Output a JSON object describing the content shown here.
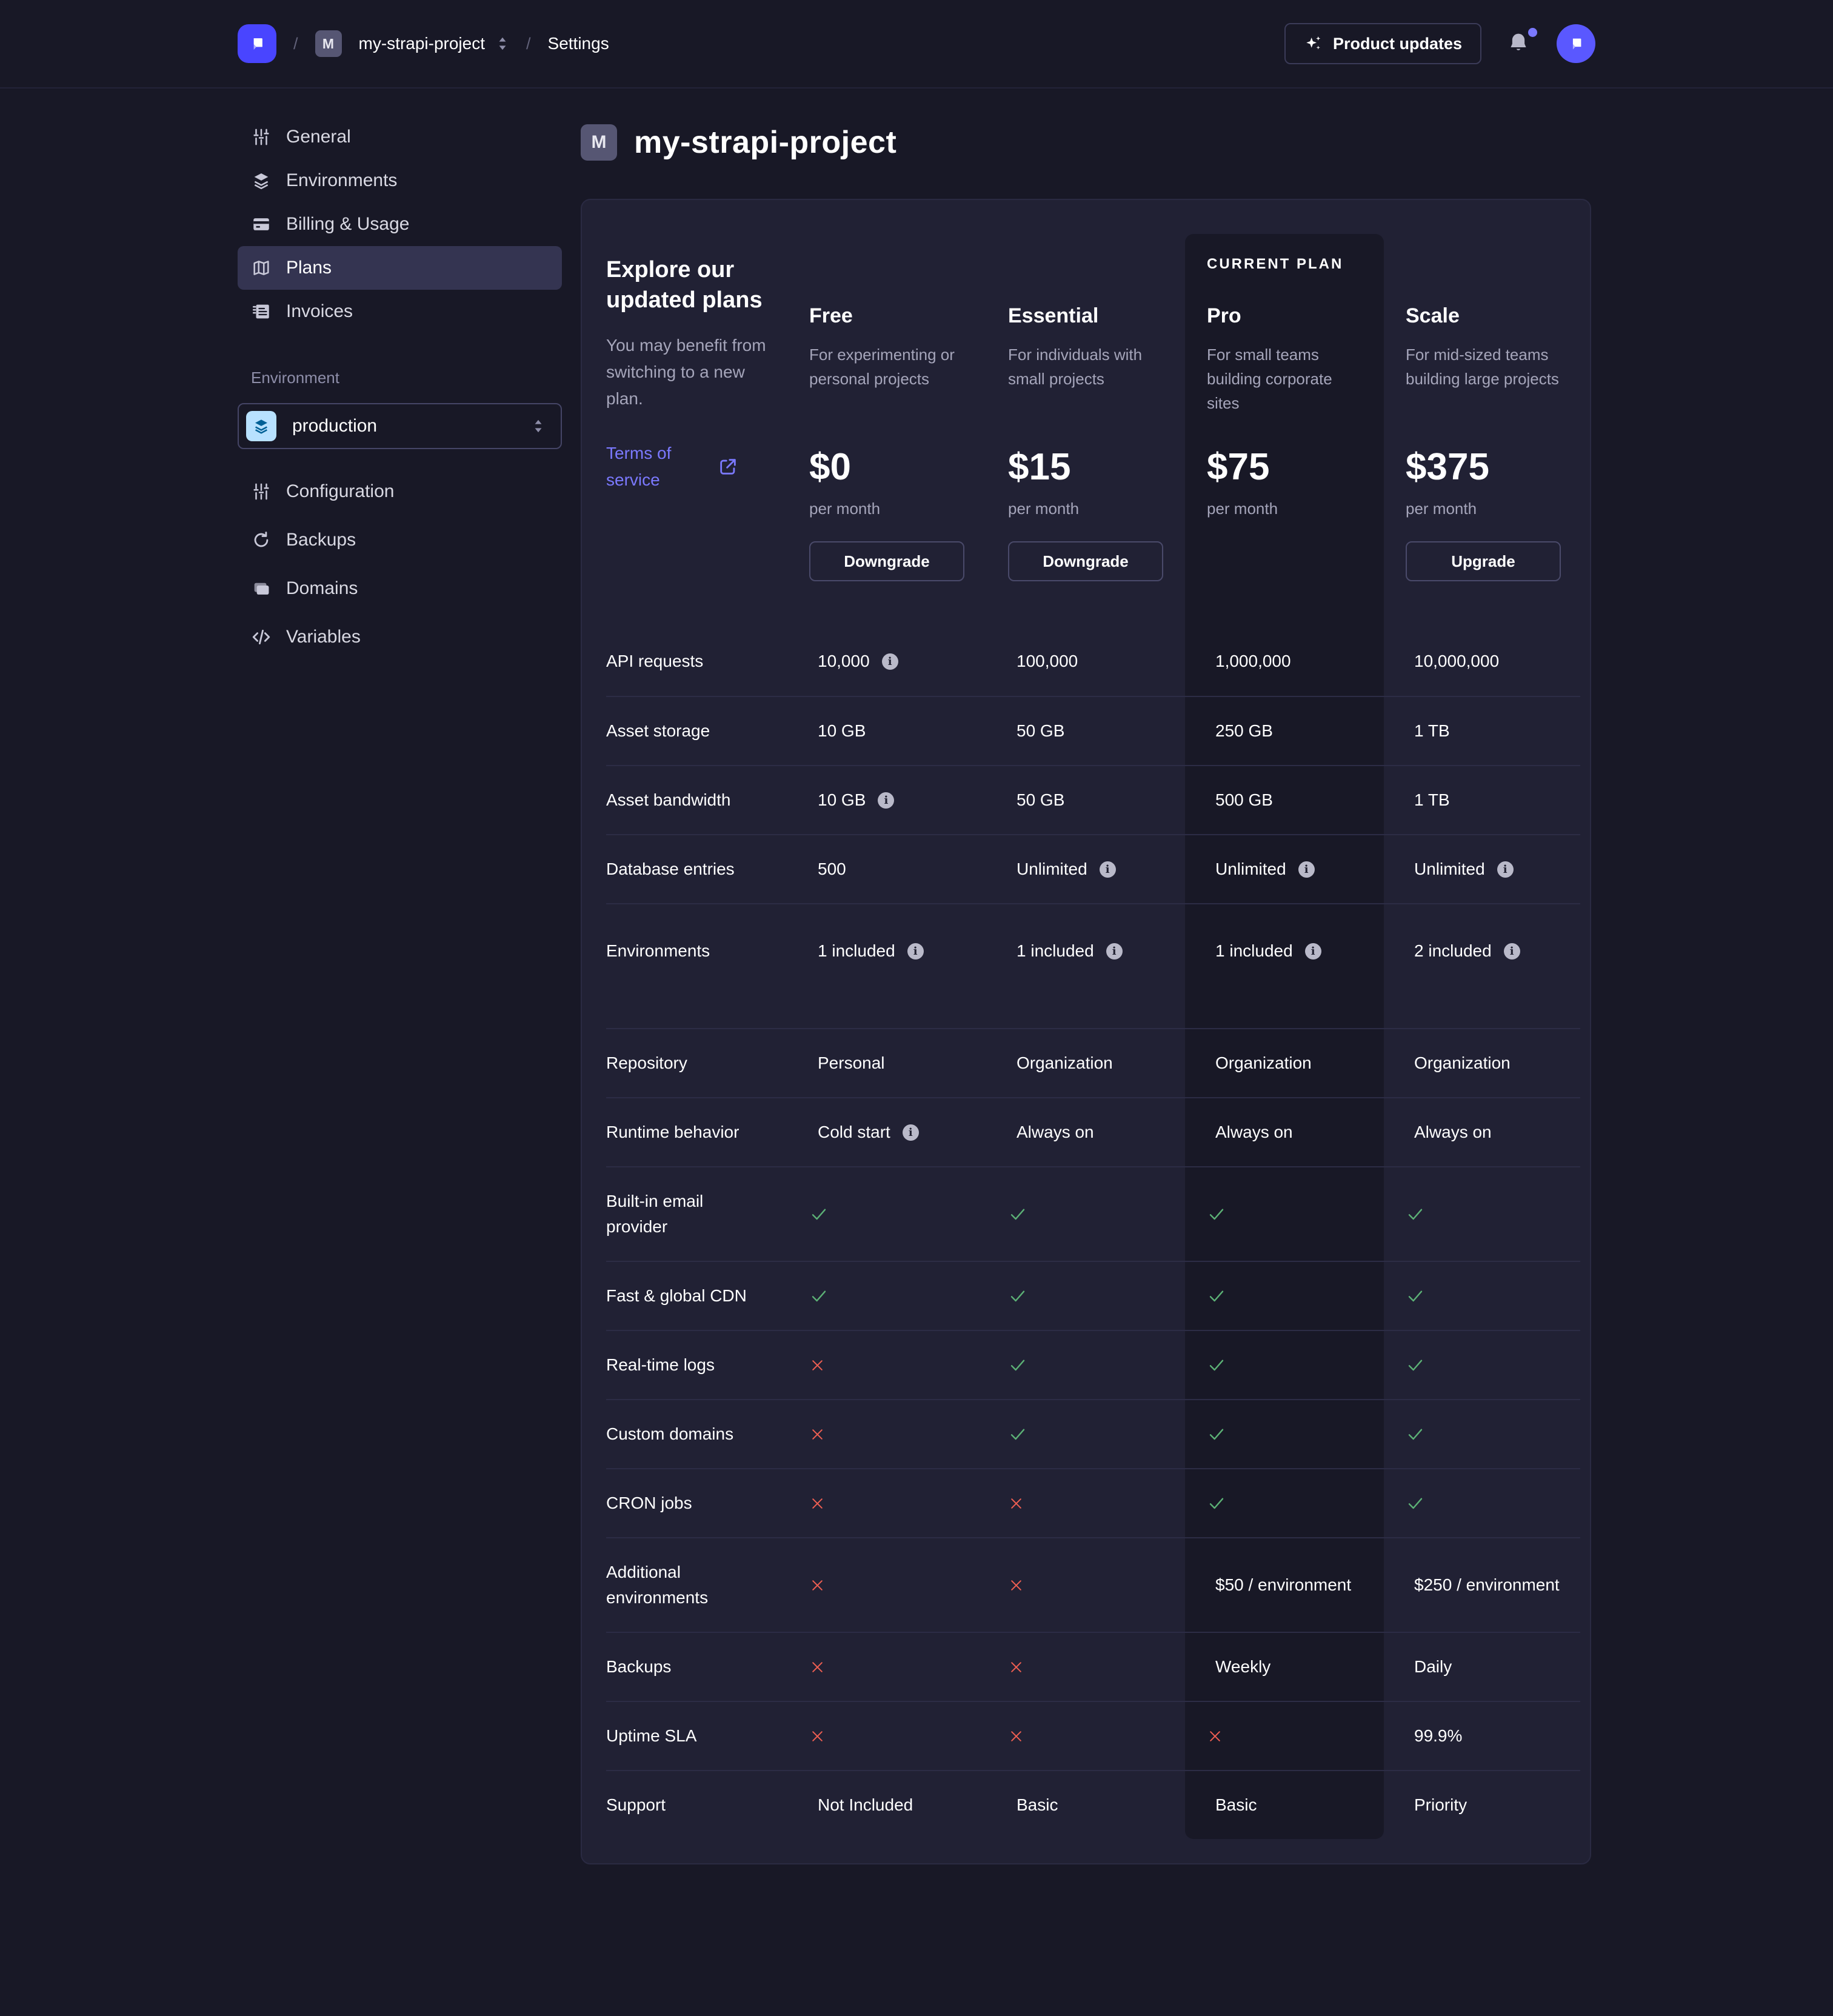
{
  "topbar": {
    "separator": "/",
    "project_badge": "M",
    "project_name": "my-strapi-project",
    "section": "Settings",
    "product_updates_label": "Product updates"
  },
  "icons": {
    "logo": "strapi-logo-icon",
    "project_switcher": "sort-updown-icon",
    "product_updates": "sparkles-icon",
    "notifications": "bell-icon",
    "avatar": "strapi-avatar-icon",
    "select_caret": "sort-updown-icon",
    "terms_external": "external-link-icon"
  },
  "page": {
    "title_badge": "M",
    "title": "my-strapi-project"
  },
  "sidebar": {
    "items": [
      {
        "icon": "sliders-icon",
        "label": "General",
        "selected": false
      },
      {
        "icon": "layers-icon",
        "label": "Environments",
        "selected": false
      },
      {
        "icon": "credit-card-icon",
        "label": "Billing & Usage",
        "selected": false
      },
      {
        "icon": "map-icon",
        "label": "Plans",
        "selected": true
      },
      {
        "icon": "invoice-icon",
        "label": "Invoices",
        "selected": false
      }
    ],
    "environment_label": "Environment",
    "environment_select": {
      "icon": "layers-blue-icon",
      "value": "production"
    },
    "environment_items": [
      {
        "icon": "sliders-icon",
        "label": "Configuration"
      },
      {
        "icon": "refresh-icon",
        "label": "Backups"
      },
      {
        "icon": "stack-icon",
        "label": "Domains"
      },
      {
        "icon": "code-icon",
        "label": "Variables"
      }
    ]
  },
  "plans_header": {
    "title": "Explore our updated plans",
    "subtitle": "You may benefit from switching to a new plan.",
    "terms_link": "Terms of service",
    "columns": [
      {
        "name": "Free",
        "desc": "For experimenting or personal projects",
        "price": "$0",
        "per": "per month",
        "button": "Downgrade",
        "current": false
      },
      {
        "name": "Essential",
        "desc": "For individuals with small projects",
        "price": "$15",
        "per": "per month",
        "button": "Downgrade",
        "current": false
      },
      {
        "name": "Pro",
        "desc": "For small teams building corporate sites",
        "price": "$75",
        "per": "per month",
        "button": null,
        "current": true,
        "current_label": "CURRENT PLAN"
      },
      {
        "name": "Scale",
        "desc": "For mid-sized teams building large projects",
        "price": "$375",
        "per": "per month",
        "button": "Upgrade",
        "current": false
      }
    ]
  },
  "plans_table": {
    "rows": [
      {
        "label": "API requests",
        "cells": [
          {
            "v": "10,000",
            "info": true
          },
          {
            "v": "100,000"
          },
          {
            "v": "1,000,000"
          },
          {
            "v": "10,000,000"
          }
        ]
      },
      {
        "label": "Asset storage",
        "cells": [
          {
            "v": "10 GB"
          },
          {
            "v": "50 GB"
          },
          {
            "v": "250 GB"
          },
          {
            "v": "1 TB"
          }
        ]
      },
      {
        "label": "Asset bandwidth",
        "cells": [
          {
            "v": "10 GB",
            "info": true
          },
          {
            "v": "50 GB"
          },
          {
            "v": "500 GB"
          },
          {
            "v": "1 TB"
          }
        ]
      },
      {
        "label": "Database entries",
        "cells": [
          {
            "v": "500"
          },
          {
            "v": "Unlimited",
            "info": true
          },
          {
            "v": "Unlimited",
            "info": true
          },
          {
            "v": "Unlimited",
            "info": true
          }
        ]
      },
      {
        "label": "Environments",
        "tall": true,
        "gap_after": true,
        "cells": [
          {
            "v": "1 included",
            "info": true
          },
          {
            "v": "1 included",
            "info": true
          },
          {
            "v": "1 included",
            "info": true
          },
          {
            "v": "2 included",
            "info": true
          }
        ]
      },
      {
        "label": "Repository",
        "no_divider": true,
        "cells": [
          {
            "v": "Personal"
          },
          {
            "v": "Organization"
          },
          {
            "v": "Organization"
          },
          {
            "v": "Organization"
          }
        ]
      },
      {
        "label": "Runtime behavior",
        "cells": [
          {
            "v": "Cold start",
            "info": true
          },
          {
            "v": "Always on"
          },
          {
            "v": "Always on"
          },
          {
            "v": "Always on"
          }
        ]
      },
      {
        "label": "Built-in email provider",
        "tall": true,
        "cells": [
          {
            "icon": "check-icon"
          },
          {
            "icon": "check-icon"
          },
          {
            "icon": "check-icon"
          },
          {
            "icon": "check-icon"
          }
        ]
      },
      {
        "label": "Fast & global CDN",
        "cells": [
          {
            "icon": "check-icon"
          },
          {
            "icon": "check-icon"
          },
          {
            "icon": "check-icon"
          },
          {
            "icon": "check-icon"
          }
        ]
      },
      {
        "label": "Real-time logs",
        "cells": [
          {
            "icon": "cross-icon"
          },
          {
            "icon": "check-icon"
          },
          {
            "icon": "check-icon"
          },
          {
            "icon": "check-icon"
          }
        ]
      },
      {
        "label": "Custom domains",
        "cells": [
          {
            "icon": "cross-icon"
          },
          {
            "icon": "check-icon"
          },
          {
            "icon": "check-icon"
          },
          {
            "icon": "check-icon"
          }
        ]
      },
      {
        "label": "CRON jobs",
        "cells": [
          {
            "icon": "cross-icon"
          },
          {
            "icon": "cross-icon"
          },
          {
            "icon": "check-icon"
          },
          {
            "icon": "check-icon"
          }
        ]
      },
      {
        "label": "Additional environments",
        "tall": true,
        "cells": [
          {
            "icon": "cross-icon"
          },
          {
            "icon": "cross-icon"
          },
          {
            "v": "$50 / environment"
          },
          {
            "v": "$250 / environment"
          }
        ]
      },
      {
        "label": "Backups",
        "cells": [
          {
            "icon": "cross-icon"
          },
          {
            "icon": "cross-icon"
          },
          {
            "v": "Weekly"
          },
          {
            "v": "Daily"
          }
        ]
      },
      {
        "label": "Uptime SLA",
        "cells": [
          {
            "icon": "cross-icon"
          },
          {
            "icon": "cross-icon"
          },
          {
            "icon": "cross-icon"
          },
          {
            "v": "99.9%"
          }
        ]
      },
      {
        "label": "Support",
        "cells": [
          {
            "v": "Not Included"
          },
          {
            "v": "Basic"
          },
          {
            "v": "Basic"
          },
          {
            "v": "Priority"
          }
        ]
      }
    ]
  },
  "misc": {
    "info_glyph": "i"
  },
  "colors": {
    "accent": "#4945ff",
    "link": "#7b79ff",
    "success": "#5cb176",
    "danger": "#ee5e52",
    "page_bg": "#181826",
    "card_bg": "#212134",
    "current_column_bg": "#181826",
    "selected_item_bg": "#343451",
    "env_icon_bg": "#b8e1ff",
    "env_icon_fg": "#006096"
  }
}
